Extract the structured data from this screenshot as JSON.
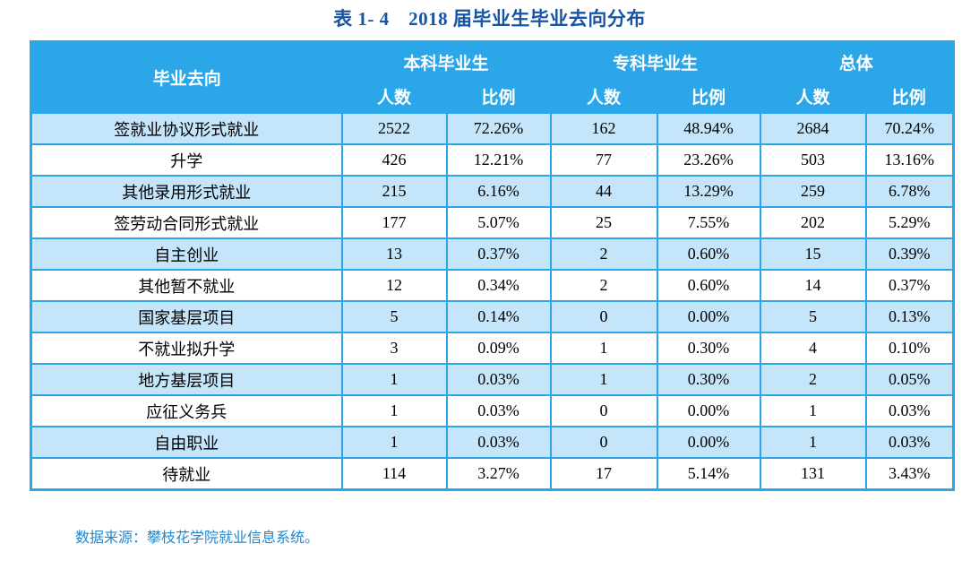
{
  "page": {
    "title": "表 1- 4　2018 届毕业生毕业去向分布"
  },
  "table": {
    "corner_header": "毕业去向",
    "groups": [
      {
        "label": "本科毕业生",
        "sub": [
          "人数",
          "比例"
        ]
      },
      {
        "label": "专科毕业生",
        "sub": [
          "人数",
          "比例"
        ]
      },
      {
        "label": "总体",
        "sub": [
          "人数",
          "比例"
        ]
      }
    ],
    "rows": [
      {
        "label": "签就业协议形式就业",
        "values": [
          "2522",
          "72.26%",
          "162",
          "48.94%",
          "2684",
          "70.24%"
        ]
      },
      {
        "label": "升学",
        "values": [
          "426",
          "12.21%",
          "77",
          "23.26%",
          "503",
          "13.16%"
        ]
      },
      {
        "label": "其他录用形式就业",
        "values": [
          "215",
          "6.16%",
          "44",
          "13.29%",
          "259",
          "6.78%"
        ]
      },
      {
        "label": "签劳动合同形式就业",
        "values": [
          "177",
          "5.07%",
          "25",
          "7.55%",
          "202",
          "5.29%"
        ]
      },
      {
        "label": "自主创业",
        "values": [
          "13",
          "0.37%",
          "2",
          "0.60%",
          "15",
          "0.39%"
        ]
      },
      {
        "label": "其他暂不就业",
        "values": [
          "12",
          "0.34%",
          "2",
          "0.60%",
          "14",
          "0.37%"
        ]
      },
      {
        "label": "国家基层项目",
        "values": [
          "5",
          "0.14%",
          "0",
          "0.00%",
          "5",
          "0.13%"
        ]
      },
      {
        "label": "不就业拟升学",
        "values": [
          "3",
          "0.09%",
          "1",
          "0.30%",
          "4",
          "0.10%"
        ]
      },
      {
        "label": "地方基层项目",
        "values": [
          "1",
          "0.03%",
          "1",
          "0.30%",
          "2",
          "0.05%"
        ]
      },
      {
        "label": "应征义务兵",
        "values": [
          "1",
          "0.03%",
          "0",
          "0.00%",
          "1",
          "0.03%"
        ]
      },
      {
        "label": "自由职业",
        "values": [
          "1",
          "0.03%",
          "0",
          "0.00%",
          "1",
          "0.03%"
        ]
      },
      {
        "label": "待就业",
        "values": [
          "114",
          "3.27%",
          "17",
          "5.14%",
          "131",
          "3.43%"
        ]
      }
    ]
  },
  "footer": {
    "source_note": "数据来源：攀枝花学院就业信息系统。"
  },
  "colors": {
    "header_bg": "#2BA6E9",
    "header_text": "#FFFFFF",
    "row_alt_bg": "#C4E5FA",
    "border": "#2BA6E9",
    "title_text": "#1754A3",
    "note_text": "#2187CE",
    "body_text": "#000000"
  }
}
